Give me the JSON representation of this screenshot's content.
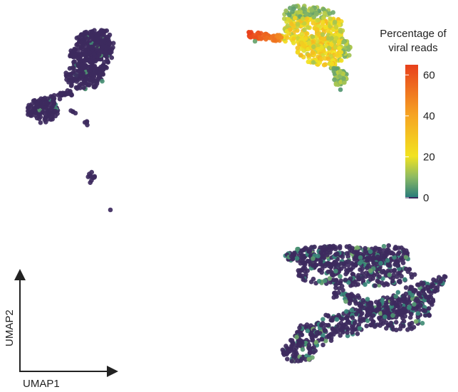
{
  "chart_data": {
    "type": "scatter",
    "title": "",
    "xlabel": "UMAP1",
    "ylabel": "UMAP2",
    "colorbar": {
      "title_line1": "Percentage of",
      "title_line2": "viral reads",
      "range": [
        0,
        64
      ],
      "ticks": [
        0,
        20,
        40,
        60
      ],
      "tick_labels": [
        "0",
        "20",
        "40",
        "60"
      ],
      "colors": [
        "#3d2a5e",
        "#2a7d7b",
        "#8cba63",
        "#f2e31f",
        "#f6a423",
        "#e8401c"
      ]
    },
    "clusters": [
      {
        "name": "upper-left cluster",
        "viral_reads_pct_range": [
          0,
          3
        ],
        "typical_pct": 0
      },
      {
        "name": "upper-right cluster",
        "viral_reads_pct_range": [
          3,
          64
        ],
        "typical_pct": 22
      },
      {
        "name": "lower-right cluster",
        "viral_reads_pct_range": [
          0,
          8
        ],
        "typical_pct": 0
      }
    ]
  }
}
